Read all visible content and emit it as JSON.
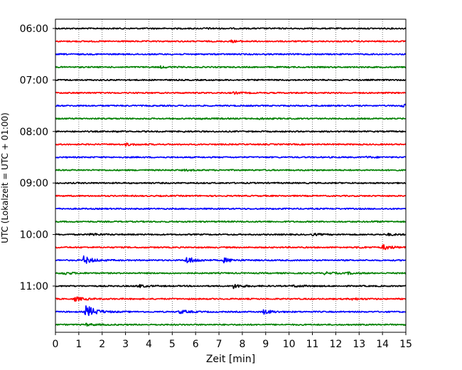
{
  "chart_data": {
    "type": "line",
    "xlabel": "Zeit  [min]",
    "ylabel": "UTC (Lokalzeit = UTC + 01:00)",
    "xlim": [
      0,
      15
    ],
    "x_ticks": [
      "0",
      "1",
      "2",
      "3",
      "4",
      "5",
      "6",
      "7",
      "8",
      "9",
      "10",
      "11",
      "12",
      "13",
      "14",
      "15"
    ],
    "y_ticks": [
      "06:00",
      "07:00",
      "08:00",
      "09:00",
      "10:00",
      "11:00"
    ],
    "grid": "vertical dotted",
    "trace_interval_minutes": 15,
    "colors": [
      "#000000",
      "#ff0000",
      "#0000ff",
      "#008000"
    ],
    "traces": [
      {
        "start": "06:00",
        "color": "#000000",
        "events": [
          {
            "t": 6.4,
            "amp": 0.6
          }
        ]
      },
      {
        "start": "06:15",
        "color": "#ff0000",
        "events": [
          {
            "t": 7.5,
            "amp": 1.2
          }
        ]
      },
      {
        "start": "06:30",
        "color": "#0000ff",
        "events": []
      },
      {
        "start": "06:45",
        "color": "#008000",
        "events": [
          {
            "t": 4.5,
            "amp": 1.0
          }
        ]
      },
      {
        "start": "07:00",
        "color": "#000000",
        "events": []
      },
      {
        "start": "07:15",
        "color": "#ff0000",
        "events": [
          {
            "t": 7.6,
            "amp": 1.2
          }
        ]
      },
      {
        "start": "07:30",
        "color": "#0000ff",
        "events": [
          {
            "t": 14.8,
            "amp": 2.0
          }
        ]
      },
      {
        "start": "07:45",
        "color": "#008000",
        "events": [
          {
            "t": 6.2,
            "amp": 0.8
          },
          {
            "t": 8.7,
            "amp": 0.8
          }
        ]
      },
      {
        "start": "08:00",
        "color": "#000000",
        "events": [
          {
            "t": 2.5,
            "amp": 0.5
          },
          {
            "t": 5.4,
            "amp": 0.5
          }
        ]
      },
      {
        "start": "08:15",
        "color": "#ff0000",
        "events": [
          {
            "t": 3.0,
            "amp": 1.5
          }
        ]
      },
      {
        "start": "08:30",
        "color": "#0000ff",
        "events": [
          {
            "t": 13.3,
            "amp": 0.8
          }
        ]
      },
      {
        "start": "08:45",
        "color": "#008000",
        "events": [
          {
            "t": 5.5,
            "amp": 0.8
          }
        ]
      },
      {
        "start": "09:00",
        "color": "#000000",
        "events": []
      },
      {
        "start": "09:15",
        "color": "#ff0000",
        "events": []
      },
      {
        "start": "09:30",
        "color": "#0000ff",
        "events": []
      },
      {
        "start": "09:45",
        "color": "#008000",
        "events": [
          {
            "t": 13.5,
            "amp": 0.5
          }
        ]
      },
      {
        "start": "10:00",
        "color": "#000000",
        "events": [
          {
            "t": 1.5,
            "amp": 1.8
          },
          {
            "t": 11.0,
            "amp": 1.2
          },
          {
            "t": 14.2,
            "amp": 1.2
          }
        ]
      },
      {
        "start": "10:15",
        "color": "#ff0000",
        "events": [
          {
            "t": 12.9,
            "amp": 1.0
          },
          {
            "t": 14.0,
            "amp": 3.5
          }
        ]
      },
      {
        "start": "10:30",
        "color": "#0000ff",
        "events": [
          {
            "t": 1.2,
            "amp": 5.5
          },
          {
            "t": 5.6,
            "amp": 5.0
          },
          {
            "t": 7.2,
            "amp": 3.0
          }
        ]
      },
      {
        "start": "10:45",
        "color": "#008000",
        "events": [
          {
            "t": 0.3,
            "amp": 2.0
          },
          {
            "t": 11.5,
            "amp": 1.5
          },
          {
            "t": 12.5,
            "amp": 1.2
          }
        ]
      },
      {
        "start": "11:00",
        "color": "#000000",
        "events": [
          {
            "t": 3.5,
            "amp": 2.0
          },
          {
            "t": 7.6,
            "amp": 3.0
          },
          {
            "t": 10.2,
            "amp": 1.5
          }
        ]
      },
      {
        "start": "11:15",
        "color": "#ff0000",
        "events": [
          {
            "t": 0.8,
            "amp": 3.0
          },
          {
            "t": 12.7,
            "amp": 1.2
          }
        ]
      },
      {
        "start": "11:30",
        "color": "#0000ff",
        "events": [
          {
            "t": 1.3,
            "amp": 10.0
          },
          {
            "t": 5.3,
            "amp": 2.5
          },
          {
            "t": 8.9,
            "amp": 3.0
          }
        ]
      },
      {
        "start": "11:45",
        "color": "#008000",
        "events": [
          {
            "t": 1.3,
            "amp": 1.5
          }
        ]
      }
    ]
  }
}
